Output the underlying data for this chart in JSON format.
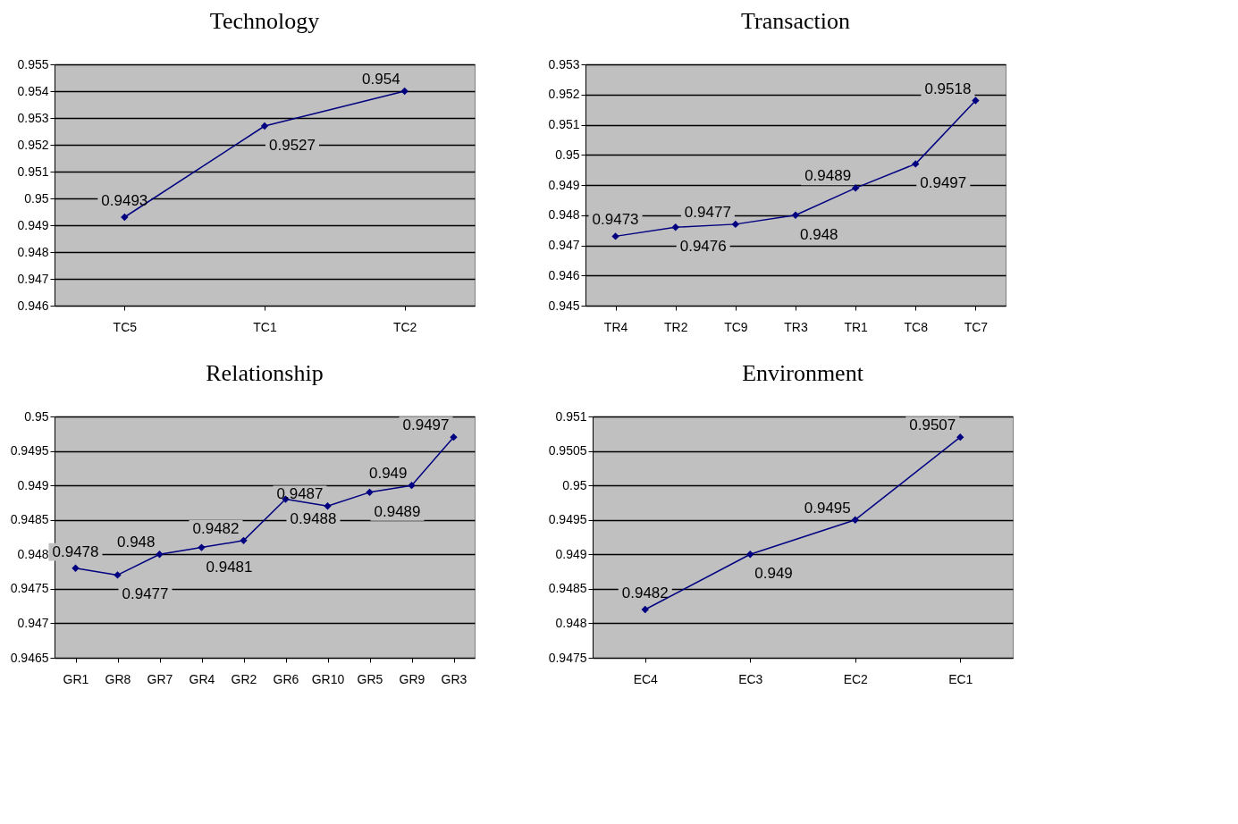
{
  "chart_data": [
    {
      "type": "line",
      "title": "Technology",
      "categories": [
        "TC5",
        "TC1",
        "TC2"
      ],
      "series": [
        {
          "color": "#000080",
          "values": [
            0.9493,
            0.9527,
            0.954
          ]
        }
      ],
      "ylim": [
        0.946,
        0.955
      ],
      "yticks": [
        0.946,
        0.947,
        0.948,
        0.949,
        0.95,
        0.951,
        0.952,
        0.953,
        0.954,
        0.955
      ],
      "grid": "y",
      "marker": "diamond",
      "data_labels": true
    },
    {
      "type": "line",
      "title": "Transaction",
      "categories": [
        "TR4",
        "TR2",
        "TC9",
        "TR3",
        "TR1",
        "TC8",
        "TC7"
      ],
      "series": [
        {
          "color": "#000080",
          "values": [
            0.9473,
            0.9476,
            0.9477,
            0.948,
            0.9489,
            0.9497,
            0.9518
          ]
        }
      ],
      "ylim": [
        0.945,
        0.953
      ],
      "yticks": [
        0.945,
        0.946,
        0.947,
        0.948,
        0.949,
        0.95,
        0.951,
        0.952,
        0.953
      ],
      "grid": "y",
      "marker": "diamond",
      "data_labels": true
    },
    {
      "type": "line",
      "title": "Relationship",
      "categories": [
        "GR1",
        "GR8",
        "GR7",
        "GR4",
        "GR2",
        "GR6",
        "GR10",
        "GR5",
        "GR9",
        "GR3"
      ],
      "series": [
        {
          "color": "#000080",
          "values": [
            0.9478,
            0.9477,
            0.948,
            0.9481,
            0.9482,
            0.9488,
            0.9487,
            0.9489,
            0.949,
            0.9497
          ]
        }
      ],
      "ylim": [
        0.9465,
        0.95
      ],
      "yticks": [
        0.9465,
        0.947,
        0.9475,
        0.948,
        0.9485,
        0.949,
        0.9495,
        0.95
      ],
      "grid": "y",
      "marker": "diamond",
      "data_labels": true
    },
    {
      "type": "line",
      "title": "Environment",
      "categories": [
        "EC4",
        "EC3",
        "EC2",
        "EC1"
      ],
      "series": [
        {
          "color": "#000080",
          "values": [
            0.9482,
            0.949,
            0.9495,
            0.9507
          ]
        }
      ],
      "ylim": [
        0.9475,
        0.951
      ],
      "yticks": [
        0.9475,
        0.948,
        0.9485,
        0.949,
        0.9495,
        0.95,
        0.9505,
        0.951
      ],
      "grid": "y",
      "marker": "diamond",
      "data_labels": true
    }
  ]
}
